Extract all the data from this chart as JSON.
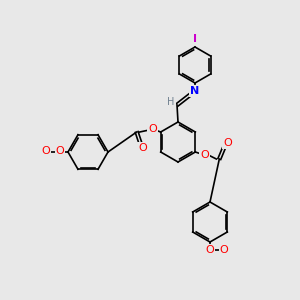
{
  "bg_color": "#e8e8e8",
  "bond_color": "#000000",
  "bond_lw": 1.2,
  "atom_colors": {
    "O": "#ff0000",
    "N": "#0000ff",
    "I": "#cc00cc",
    "H": "#708090",
    "C": "#000000"
  },
  "font_size": 7.5
}
